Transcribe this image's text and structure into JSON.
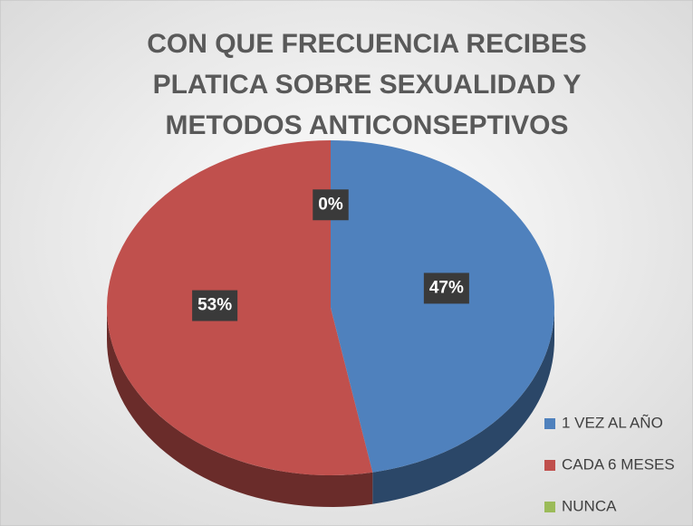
{
  "chart_data": {
    "type": "pie",
    "title": [
      "CON QUE FRECUENCIA RECIBES",
      "PLATICA SOBRE SEXUALIDAD Y",
      "METODOS ANTICONSEPTIVOS"
    ],
    "categories": [
      "1 VEZ AL AÑO",
      "CADA 6 MESES",
      "NUNCA"
    ],
    "values": [
      47,
      53,
      0
    ],
    "value_labels": [
      "47%",
      "53%",
      "0%"
    ],
    "colors": [
      "#4f81bd",
      "#c0504d",
      "#9bbb59"
    ],
    "legend": "bottom-right"
  }
}
